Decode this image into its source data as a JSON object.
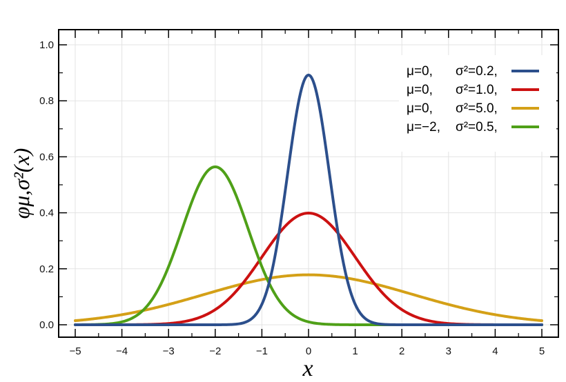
{
  "chart_data": {
    "type": "line",
    "xlabel": "x",
    "ylabel": "φμ,σ²(x)",
    "xlim": [
      -5,
      5
    ],
    "ylim": [
      0,
      1.0
    ],
    "grid": true,
    "legend_position": "top-right",
    "x_ticks": [
      "−5",
      "−4",
      "−3",
      "−2",
      "−1",
      "0",
      "1",
      "2",
      "3",
      "4",
      "5"
    ],
    "y_ticks": [
      "0.0",
      "0.2",
      "0.4",
      "0.6",
      "0.8",
      "1.0"
    ],
    "series": [
      {
        "mu_label": "μ=0,",
        "sigma_label": "σ²=0.2,",
        "mu": 0,
        "variance": 0.2,
        "color": "#2c4f8c"
      },
      {
        "mu_label": "μ=0,",
        "sigma_label": "σ²=1.0,",
        "mu": 0,
        "variance": 1.0,
        "color": "#cc1111"
      },
      {
        "mu_label": "μ=0,",
        "sigma_label": "σ²=5.0,",
        "mu": 0,
        "variance": 5.0,
        "color": "#d4a017"
      },
      {
        "mu_label": "μ=−2,",
        "sigma_label": "σ²=0.5,",
        "mu": -2,
        "variance": 0.5,
        "color": "#4fa018"
      }
    ]
  }
}
